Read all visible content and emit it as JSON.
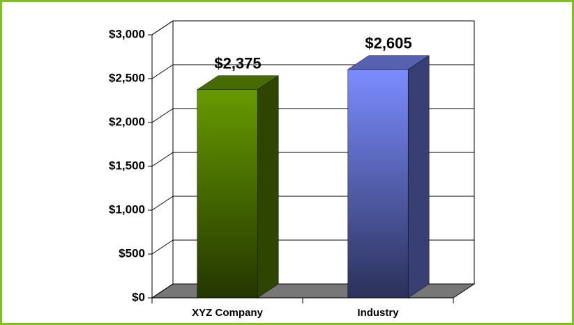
{
  "chart_data": {
    "type": "bar3d",
    "categories": [
      "XYZ Company",
      "Industry"
    ],
    "values": [
      2375,
      2605
    ],
    "value_labels": [
      "$2,375",
      "$2,605"
    ],
    "colors": [
      "#669a00",
      "#7b8cff"
    ],
    "ylim": [
      0,
      3000
    ],
    "yticks": [
      {
        "value": 0,
        "label": "$0"
      },
      {
        "value": 500,
        "label": "$500"
      },
      {
        "value": 1000,
        "label": "$1,000"
      },
      {
        "value": 1500,
        "label": "$1,500"
      },
      {
        "value": 2000,
        "label": "$2,000"
      },
      {
        "value": 2500,
        "label": "$2,500"
      },
      {
        "value": 3000,
        "label": "$3,000"
      }
    ],
    "grid": true
  }
}
